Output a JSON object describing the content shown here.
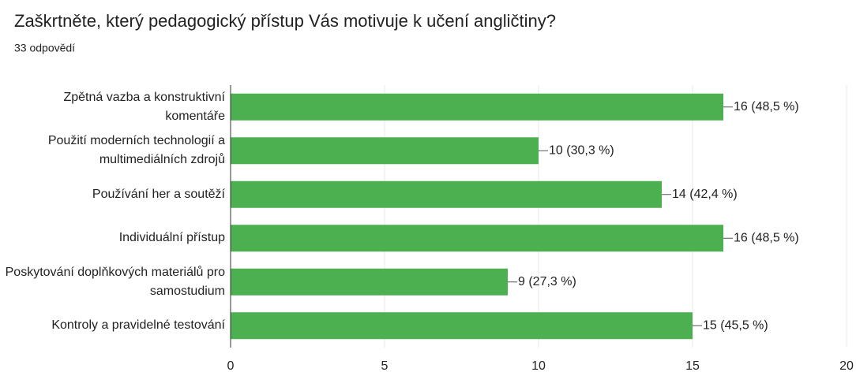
{
  "chart_data": {
    "type": "hbar",
    "title": "Zaškrtněte, který pedagogický přístup Vás motivuje k učení angličtiny?",
    "subtitle": "33 odpovědí",
    "categories": [
      "Zpětná vazba a konstruktivní komentáře",
      "Použití moderních technologií a multimediálních zdrojů",
      "Používání her a soutěží",
      "Individuální přístup",
      "Poskytování doplňkových materiálů pro samostudium",
      "Kontroly a pravidelné testování"
    ],
    "values": [
      16,
      10,
      14,
      16,
      9,
      15
    ],
    "value_labels": [
      "16 (48,5 %)",
      "10 (30,3 %)",
      "14 (42,4 %)",
      "16 (48,5 %)",
      "9 (27,3 %)",
      "15 (45,5 %)"
    ],
    "color": "#4caf50",
    "xlim": [
      0,
      20
    ],
    "xticks": [
      0,
      5,
      10,
      15,
      20
    ],
    "grid": true
  }
}
